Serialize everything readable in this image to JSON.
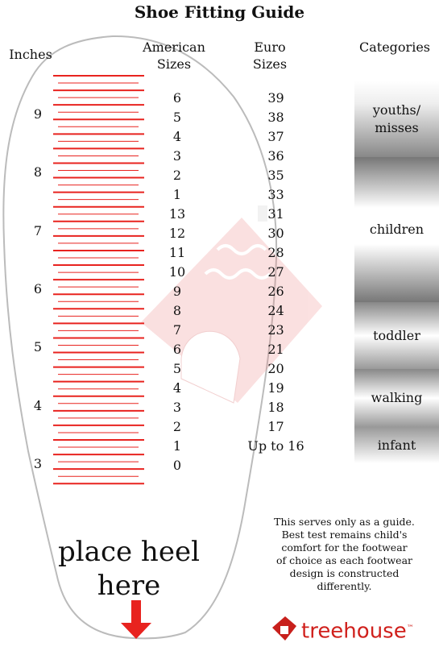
{
  "header": {
    "title": "Shoe Fitting Guide"
  },
  "columns": {
    "inches": "Inches",
    "american": "American Sizes",
    "euro": "Euro Sizes",
    "categories": "Categories"
  },
  "inches": [
    9,
    8,
    7,
    6,
    5,
    4,
    3
  ],
  "american_sizes": [
    6,
    5,
    4,
    3,
    2,
    1,
    13,
    12,
    11,
    10,
    9,
    8,
    7,
    6,
    5,
    4,
    3,
    2,
    1,
    0
  ],
  "euro_sizes": [
    39,
    38,
    37,
    36,
    35,
    33,
    31,
    30,
    28,
    27,
    26,
    24,
    23,
    21,
    20,
    19,
    18,
    17,
    "Up to 16"
  ],
  "categories": [
    "youths/ misses",
    "children",
    "toddler",
    "walking",
    "infant"
  ],
  "instruction": "place heel here",
  "note": [
    "This serves only as a guide.",
    "Best test remains child's",
    "comfort for the footwear",
    "of choice as each footwear",
    "design is constructed",
    "differently."
  ],
  "logo": {
    "name": "treehouse",
    "mark": "™"
  }
}
